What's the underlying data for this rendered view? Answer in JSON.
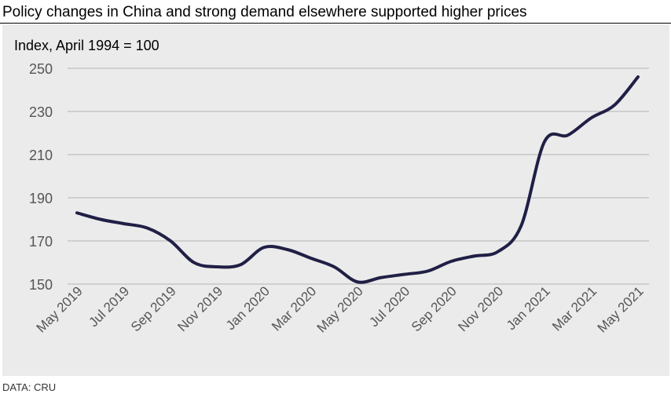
{
  "title": "Policy changes in China and strong demand elsewhere supported higher prices",
  "source": "DATA: CRU",
  "colors": {
    "line": "#201f45",
    "grid": "#b3b3b3",
    "panel": "#ebebeb",
    "tick_text": "#555555"
  },
  "chart_data": {
    "type": "line",
    "title": "Policy changes in China and strong demand elsewhere supported higher prices",
    "ylabel": "Index, April 1994 = 100",
    "xlabel": "",
    "ylim": [
      150,
      250
    ],
    "yticks": [
      150,
      170,
      190,
      210,
      230,
      250
    ],
    "grid": true,
    "xtick_labels": [
      "May 2019",
      "Jul 2019",
      "Sep 2019",
      "Nov 2019",
      "Jan 2020",
      "Mar 2020",
      "May 2020",
      "Jul 2020",
      "Sep 2020",
      "Nov 2020",
      "Jan 2021",
      "Mar 2021",
      "May 2021"
    ],
    "x": [
      "May 2019",
      "Jun 2019",
      "Jul 2019",
      "Aug 2019",
      "Sep 2019",
      "Oct 2019",
      "Nov 2019",
      "Dec 2019",
      "Jan 2020",
      "Feb 2020",
      "Mar 2020",
      "Apr 2020",
      "May 2020",
      "Jun 2020",
      "Jul 2020",
      "Aug 2020",
      "Sep 2020",
      "Oct 2020",
      "Nov 2020",
      "Dec 2020",
      "Jan 2021",
      "Feb 2021",
      "Mar 2021",
      "Apr 2021",
      "May 2021"
    ],
    "series": [
      {
        "name": "Index",
        "values": [
          183,
          180,
          178,
          176,
          170,
          160,
          158,
          159,
          167,
          166,
          162,
          158,
          151,
          153,
          154.5,
          156,
          160.5,
          163,
          165,
          177,
          216,
          219,
          227,
          233,
          246
        ]
      }
    ]
  }
}
